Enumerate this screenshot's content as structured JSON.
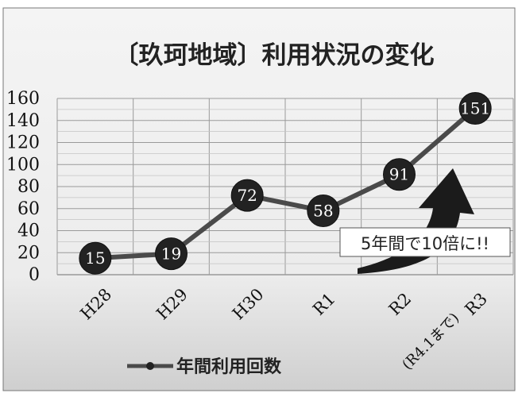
{
  "chart_data": {
    "type": "line",
    "title": "〔玖珂地域〕利用状況の変化",
    "categories": [
      "H28",
      "H29",
      "H30",
      "R1",
      "R2",
      "R3"
    ],
    "category_note": "(R4.1まで)",
    "series": [
      {
        "name": "年間利用回数",
        "values": [
          15,
          19,
          72,
          58,
          91,
          151
        ]
      }
    ],
    "ylim": [
      0,
      160
    ],
    "yticks": [
      0,
      20,
      40,
      60,
      80,
      100,
      120,
      140,
      160
    ],
    "grid": true,
    "legend": "bottom-left",
    "annotation": "5年間で10倍に!!",
    "colors": {
      "line": "#4a4a4a",
      "marker": "#222222",
      "marker_text": "#ffffff",
      "grid": "#9a9a9a",
      "arrow": "#1a1a1a"
    }
  }
}
